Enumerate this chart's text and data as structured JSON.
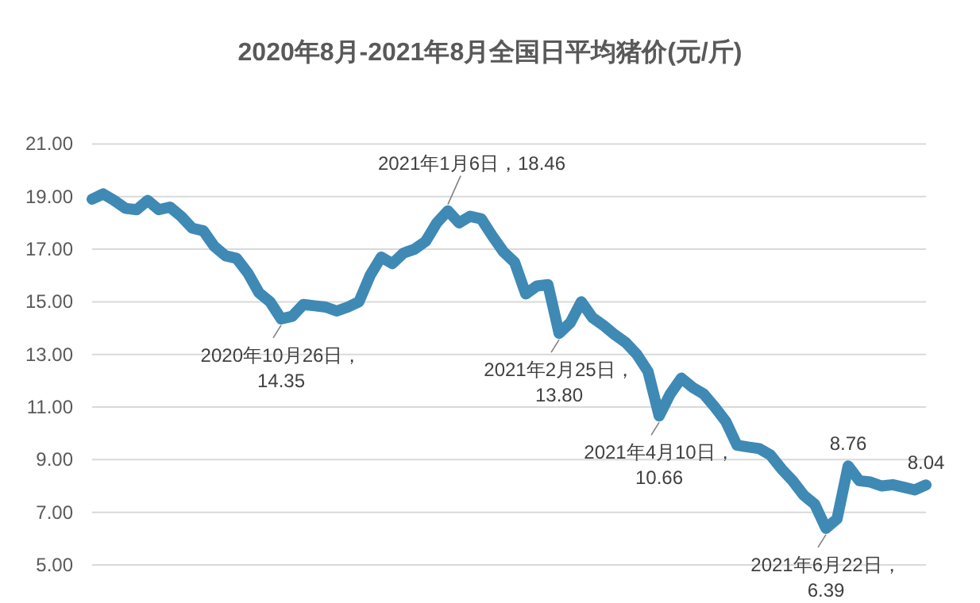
{
  "chart_data": {
    "type": "line",
    "title": "2020年8月-2021年8月全国日平均猪价(元/斤)",
    "categories": [
      null,
      null,
      null,
      null,
      null,
      null,
      null,
      null,
      null,
      null,
      null,
      null,
      null,
      null,
      null,
      null,
      null,
      null,
      null,
      null,
      null,
      null,
      null,
      null,
      null,
      null,
      null,
      null,
      null,
      null,
      null,
      null,
      null,
      null,
      null,
      null,
      null,
      null,
      null,
      null,
      null,
      null,
      null,
      null,
      null,
      null,
      null,
      null,
      null,
      null,
      null,
      null,
      null,
      null,
      null,
      null,
      null,
      null,
      null,
      null,
      null,
      null,
      null,
      null,
      null,
      null,
      null,
      null,
      null,
      null,
      null,
      null,
      null,
      null,
      null,
      null
    ],
    "series": [
      {
        "color": "#3f89b5",
        "values": [
          18.9,
          19.1,
          18.85,
          18.55,
          18.5,
          18.85,
          18.5,
          18.6,
          18.25,
          17.8,
          17.7,
          17.1,
          16.75,
          16.65,
          16.1,
          15.35,
          15.0,
          14.35,
          14.45,
          14.9,
          14.85,
          14.8,
          14.65,
          14.8,
          15.0,
          16.0,
          16.7,
          16.45,
          16.85,
          17.0,
          17.3,
          18.0,
          18.46,
          18.0,
          18.25,
          18.15,
          17.5,
          16.9,
          16.5,
          15.3,
          15.6,
          15.65,
          13.8,
          14.2,
          15.0,
          14.4,
          14.1,
          13.75,
          13.45,
          13.0,
          12.35,
          10.66,
          11.5,
          12.1,
          11.75,
          11.5,
          11.0,
          10.45,
          9.55,
          9.48,
          9.42,
          9.18,
          8.65,
          8.2,
          7.65,
          7.3,
          6.39,
          6.75,
          8.76,
          8.2,
          8.15,
          8.0,
          8.05,
          7.95,
          7.85,
          8.04
        ]
      }
    ],
    "ylim": [
      5,
      21
    ],
    "yticks": [
      {
        "value": 5,
        "label": "5.00"
      },
      {
        "value": 7,
        "label": "7.00"
      },
      {
        "value": 9,
        "label": "9.00"
      },
      {
        "value": 11,
        "label": "11.00"
      },
      {
        "value": 13,
        "label": "13.00"
      },
      {
        "value": 15,
        "label": "15.00"
      },
      {
        "value": 17,
        "label": "17.00"
      },
      {
        "value": 19,
        "label": "19.00"
      },
      {
        "value": 21,
        "label": "21.00"
      }
    ],
    "tick_labels": "y",
    "grid": "y",
    "annotations": [
      {
        "text": "2020年10月26日，\n14.35",
        "y": 14.35
      },
      {
        "text": "2021年1月6日，18.46",
        "y": 18.46
      },
      {
        "text": "2021年2月25日，\n13.80",
        "y": 13.8
      },
      {
        "text": "2021年4月10日，\n10.66",
        "y": 10.66
      },
      {
        "text": "2021年6月22日，\n6.39",
        "y": 6.39
      },
      {
        "text": "8.76",
        "y": 8.76
      },
      {
        "text": "8.04",
        "y": 8.04
      }
    ]
  }
}
